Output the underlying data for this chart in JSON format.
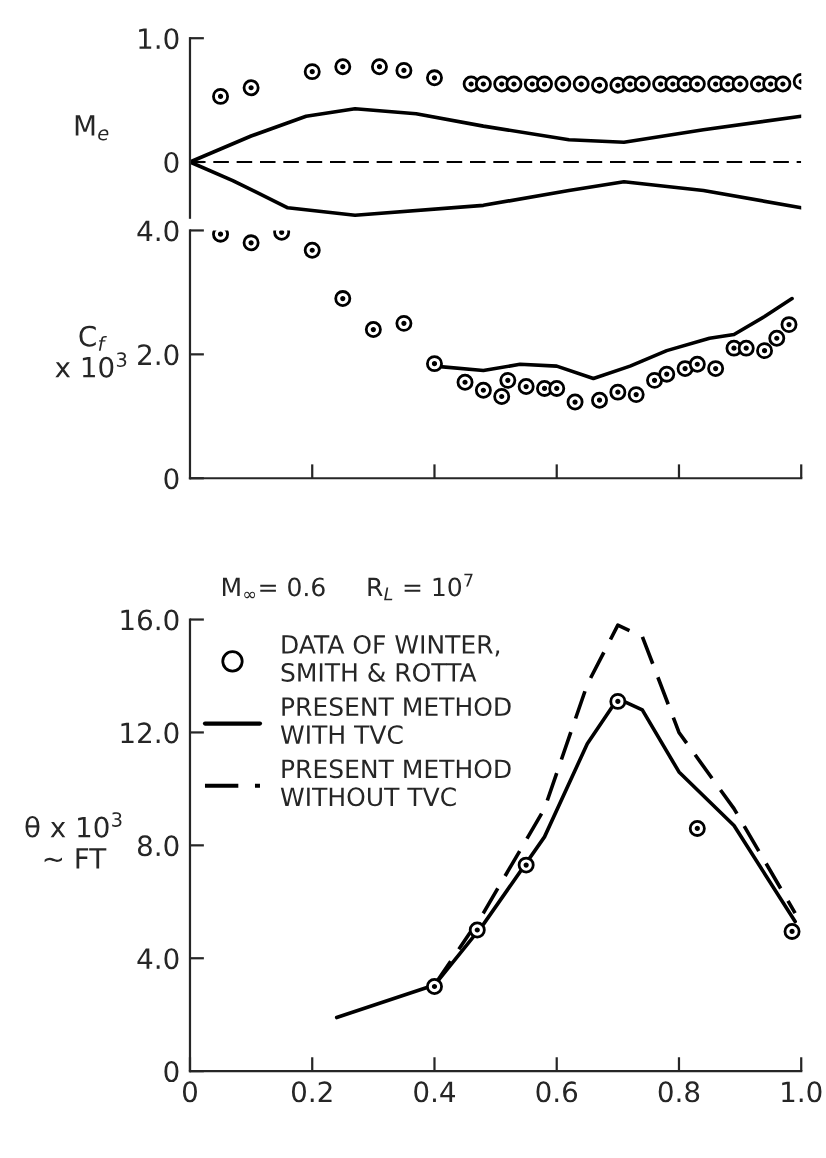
{
  "chart_data": [
    {
      "type": "scatter",
      "ylabel": "M$_{e}$",
      "xlim": [
        0,
        1.0
      ],
      "ylim": [
        -0.45,
        1.0
      ],
      "yticks": [
        0,
        {
          "value": 1.0,
          "label": "1.0"
        }
      ],
      "tick_labels": "y",
      "grid": false,
      "legend": false,
      "series": [
        {
          "marker": "circle",
          "color": "#000000",
          "x": [
            0.05,
            0.1,
            0.2,
            0.25,
            0.31,
            0.35,
            0.4,
            0.46,
            0.48,
            0.51,
            0.53,
            0.56,
            0.58,
            0.61,
            0.64,
            0.67,
            0.7,
            0.72,
            0.74,
            0.77,
            0.79,
            0.81,
            0.83,
            0.86,
            0.88,
            0.9,
            0.93,
            0.95,
            0.97,
            1.0
          ],
          "values": [
            0.53,
            0.6,
            0.73,
            0.77,
            0.77,
            0.74,
            0.68,
            0.63,
            0.63,
            0.63,
            0.63,
            0.63,
            0.63,
            0.63,
            0.63,
            0.62,
            0.62,
            0.63,
            0.63,
            0.63,
            0.63,
            0.63,
            0.63,
            0.63,
            0.63,
            0.63,
            0.63,
            0.63,
            0.63,
            0.65
          ]
        },
        {
          "type": "line",
          "line_style": "solid",
          "color": "#000000",
          "x": [
            0,
            0.1,
            0.19,
            0.27,
            0.37,
            0.48,
            0.62,
            0.71,
            0.84,
            1.0
          ],
          "values": [
            0,
            0.21,
            0.37,
            0.43,
            0.39,
            0.29,
            0.18,
            0.16,
            0.26,
            0.37
          ]
        },
        {
          "type": "line",
          "line_style": "solid",
          "color": "#000000",
          "x": [
            0,
            0.07,
            0.16,
            0.27,
            0.48,
            0.62,
            0.71,
            0.84,
            1.0
          ],
          "values": [
            0,
            -0.15,
            -0.37,
            -0.43,
            -0.35,
            -0.23,
            -0.16,
            -0.23,
            -0.37
          ]
        }
      ],
      "ref_lines": [
        {
          "axis": "y",
          "value": 0,
          "color": "#000000",
          "line_style": "dashed"
        }
      ]
    },
    {
      "type": "scatter",
      "ylabel": "C$_{f}$\nx 10$^{3}$",
      "xlim": [
        0,
        1.0
      ],
      "ylim": [
        0,
        4.0
      ],
      "xticks": [
        {
          "value": 0.2,
          "label": null
        },
        {
          "value": 0.4,
          "label": null
        },
        {
          "value": 0.6,
          "label": null
        },
        {
          "value": 0.8,
          "label": null
        },
        {
          "value": 1.0,
          "label": null
        }
      ],
      "yticks": [
        0,
        {
          "value": 2.0,
          "label": "2.0"
        },
        {
          "value": 4.0,
          "label": "4.0"
        }
      ],
      "tick_labels": "y",
      "grid": false,
      "legend": false,
      "series": [
        {
          "marker": "circle",
          "color": "#000000",
          "x": [
            0.05,
            0.1,
            0.15,
            0.2,
            0.25,
            0.3,
            0.35,
            0.4,
            0.45,
            0.48,
            0.51,
            0.52,
            0.55,
            0.58,
            0.6,
            0.63,
            0.67,
            0.7,
            0.73,
            0.76,
            0.78,
            0.81,
            0.83,
            0.86,
            0.89,
            0.91,
            0.94,
            0.96,
            0.98
          ],
          "values": [
            3.94,
            3.8,
            3.97,
            3.68,
            2.9,
            2.4,
            2.5,
            1.85,
            1.55,
            1.42,
            1.32,
            1.58,
            1.48,
            1.45,
            1.45,
            1.23,
            1.26,
            1.39,
            1.35,
            1.58,
            1.68,
            1.77,
            1.84,
            1.77,
            2.1,
            2.1,
            2.06,
            2.26,
            2.48
          ]
        },
        {
          "type": "line",
          "line_style": "solid",
          "color": "#000000",
          "x": [
            0.4,
            0.48,
            0.54,
            0.6,
            0.66,
            0.72,
            0.78,
            0.85,
            0.89,
            0.94,
            0.985
          ],
          "values": [
            1.81,
            1.74,
            1.84,
            1.81,
            1.61,
            1.81,
            2.06,
            2.26,
            2.32,
            2.61,
            2.9
          ]
        }
      ]
    },
    {
      "type": "scatter",
      "ylabel": "θ x 10$^{3}$\n~ FT",
      "annotations": [
        "M$_{∞}$= 0.6     R$_{L}$ = 10$^{7}$"
      ],
      "xlim": [
        0,
        1.0
      ],
      "ylim": [
        0,
        16.0
      ],
      "xticks": [
        0,
        {
          "value": 0.2,
          "label": "0.2"
        },
        {
          "value": 0.4,
          "label": "0.4"
        },
        {
          "value": 0.6,
          "label": "0.6"
        },
        {
          "value": 0.8,
          "label": "0.8"
        },
        {
          "value": 1.0,
          "label": "1.0"
        }
      ],
      "yticks": [
        0,
        {
          "value": 4.0,
          "label": "4.0"
        },
        {
          "value": 8.0,
          "label": "8.0"
        },
        {
          "value": 12.0,
          "label": "12.0"
        },
        {
          "value": 16.0,
          "label": "16.0"
        }
      ],
      "grid": false,
      "legend": "top left",
      "series": [
        {
          "name": "DATA OF WINTER,\nSMITH & ROTTA",
          "marker": "circle",
          "color": "#000000",
          "x": [
            0.4,
            0.47,
            0.55,
            0.7,
            0.83,
            0.985
          ],
          "values": [
            3.0,
            5.0,
            7.3,
            13.1,
            8.6,
            4.95
          ]
        },
        {
          "name": "PRESENT METHOD\nWITH TVC",
          "type": "line",
          "line_style": "solid",
          "color": "#000000",
          "x": [
            0.24,
            0.4,
            0.48,
            0.58,
            0.65,
            0.7,
            0.74,
            0.8,
            0.89,
            0.99
          ],
          "values": [
            1.9,
            3.05,
            5.2,
            8.3,
            11.6,
            13.2,
            12.8,
            10.6,
            8.7,
            5.3
          ]
        },
        {
          "name": "PRESENT METHOD\nWITHOUT TVC",
          "type": "line",
          "line_style": "dashed",
          "color": "#000000",
          "x": [
            0.4,
            0.48,
            0.58,
            0.65,
            0.7,
            0.74,
            0.8,
            0.89,
            0.99
          ],
          "values": [
            3.05,
            5.6,
            9.3,
            13.7,
            15.8,
            15.4,
            12.0,
            9.3,
            5.6
          ]
        }
      ]
    }
  ]
}
